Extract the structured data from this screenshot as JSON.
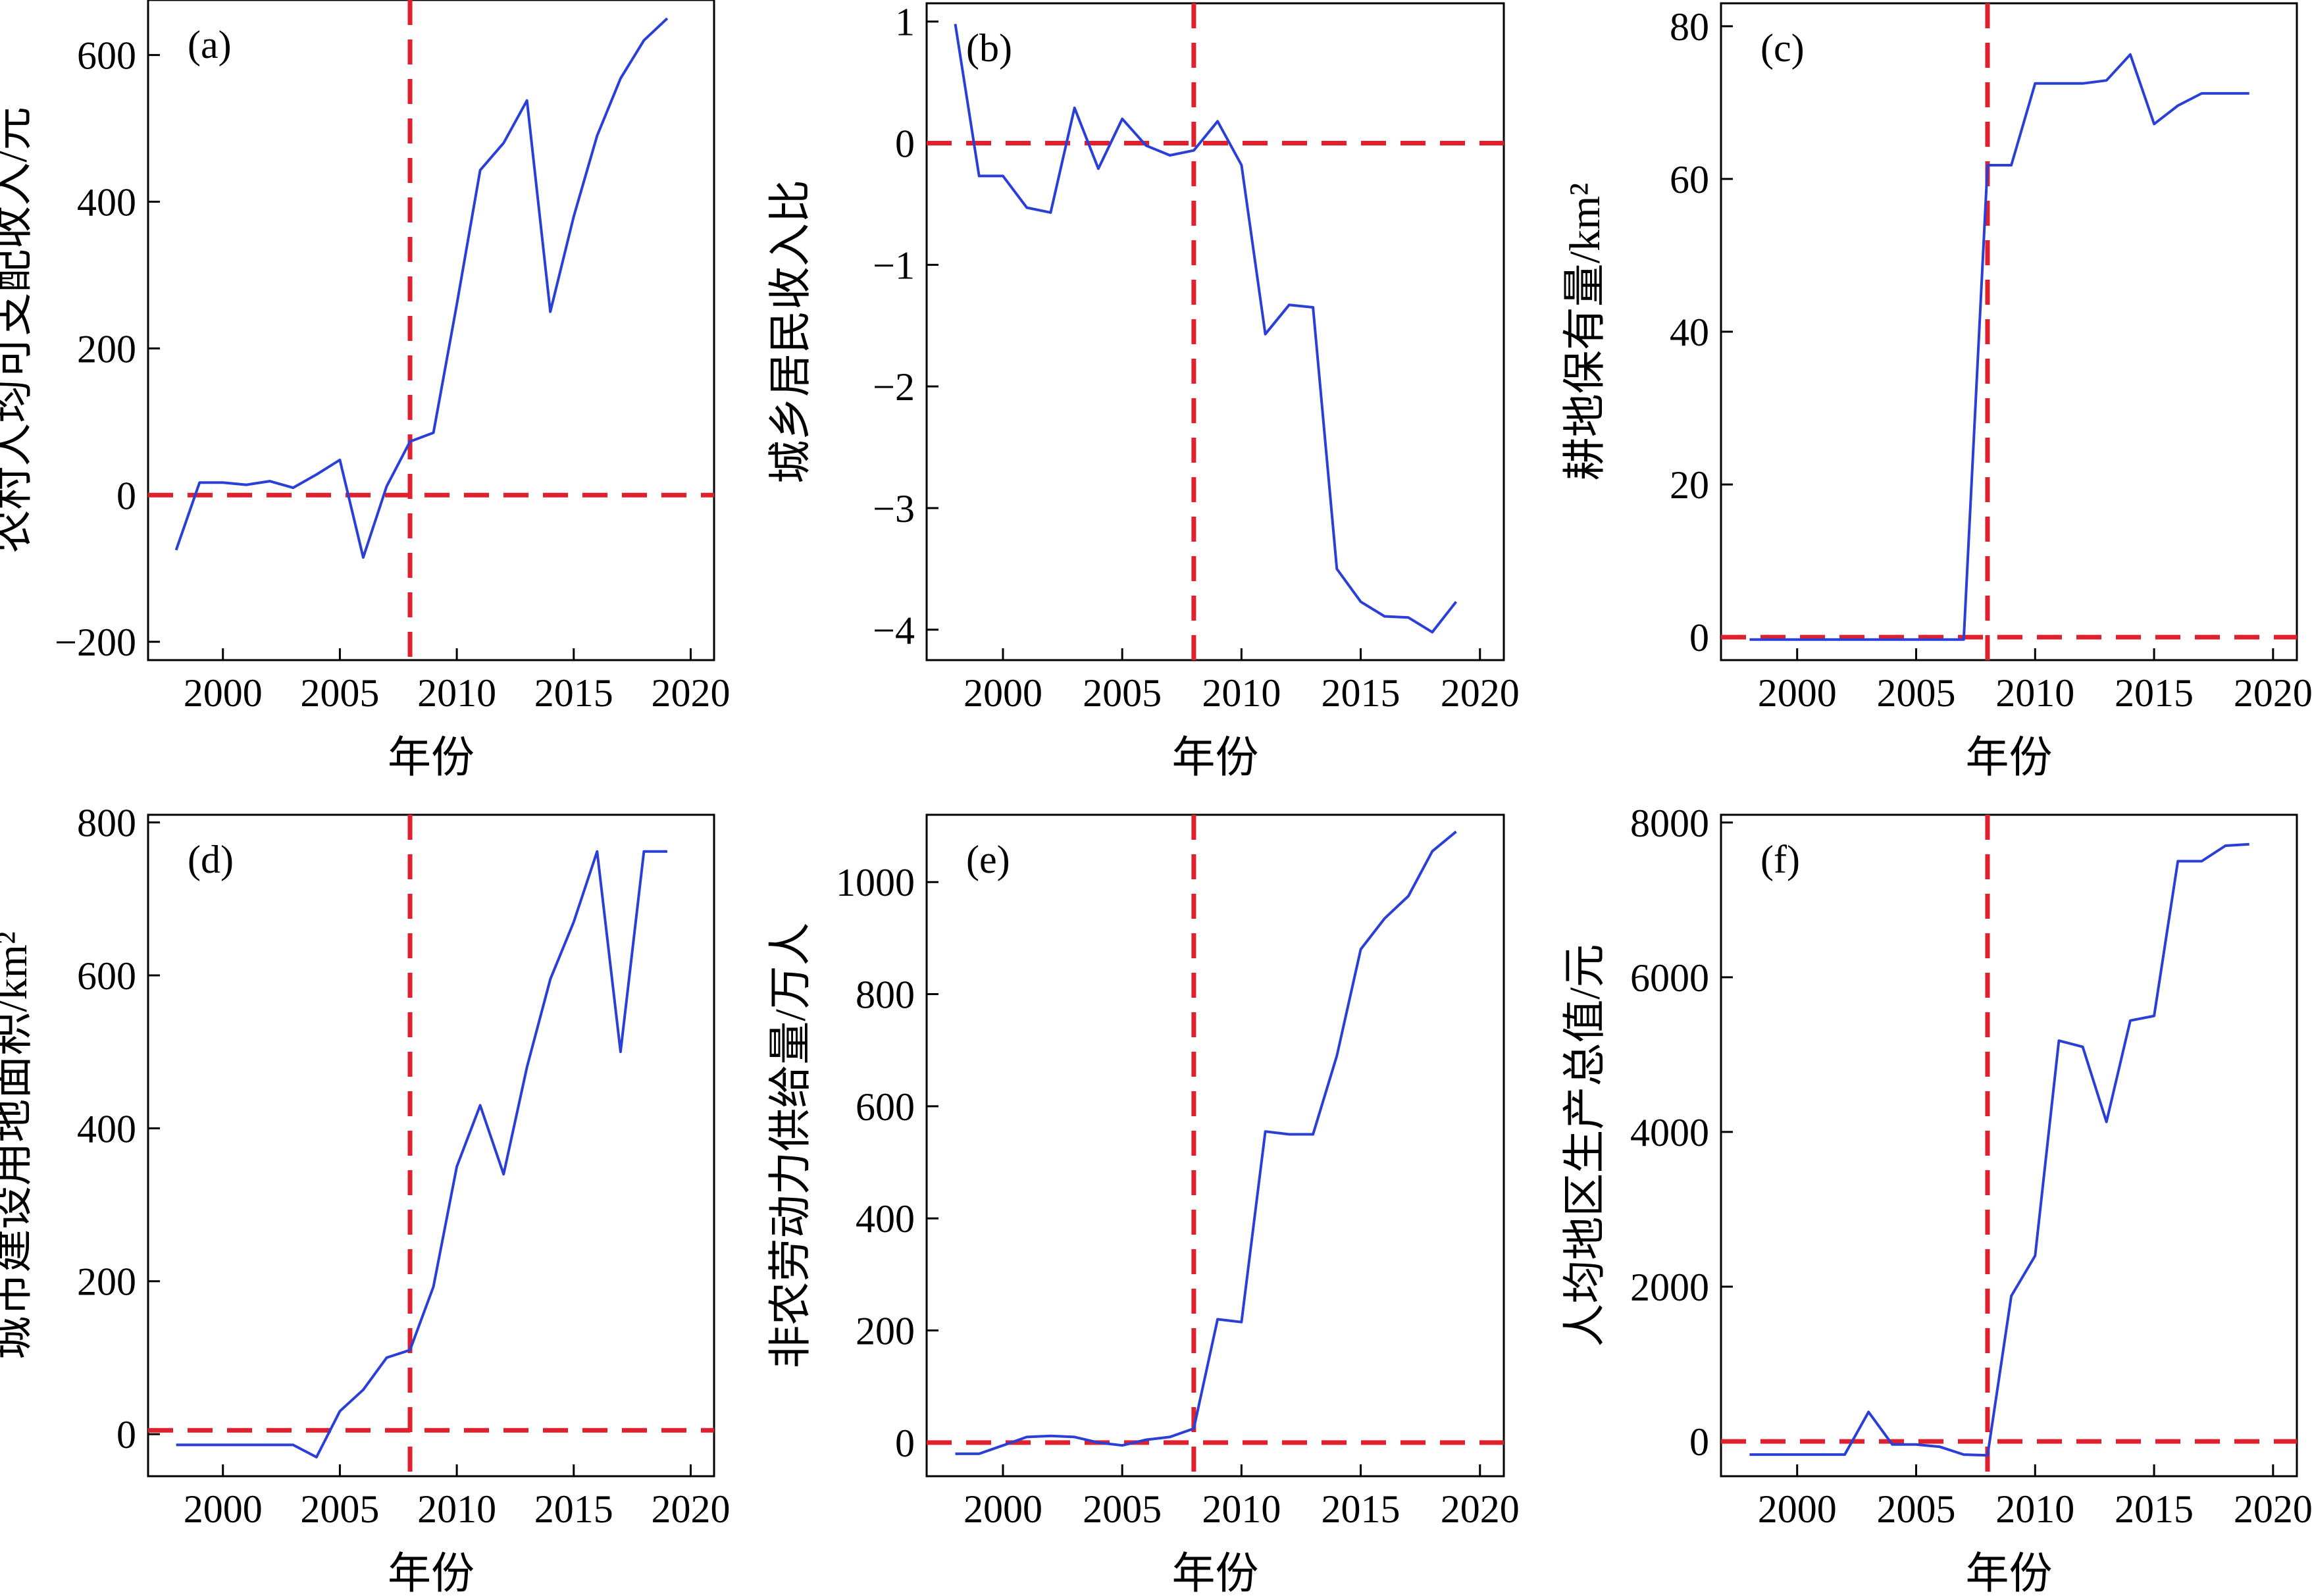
{
  "figure": {
    "colors": {
      "series": "#2a3fd6",
      "reference": "#e0202c",
      "axis": "#000000"
    },
    "line_styles": {
      "reference": "dashed"
    }
  },
  "chart_data": [
    {
      "type": "line",
      "panel_label": "(a)",
      "xlabel": "年份",
      "ylabel": "农村人均可支配收入/元",
      "xlim": [
        1996.8,
        2021
      ],
      "ylim": [
        -225,
        675
      ],
      "xticks": [
        2000,
        2005,
        2010,
        2015,
        2020
      ],
      "yticks": [
        -200,
        0,
        200,
        400,
        600
      ],
      "ytick_labels": [
        "−200",
        "0",
        "200",
        "400",
        "600"
      ],
      "reference_lines": {
        "x": 2008,
        "y": 0
      },
      "series": [
        {
          "x": [
            1998,
            1999,
            2000,
            2001,
            2002,
            2003,
            2004,
            2005,
            2006,
            2007,
            2008,
            2009,
            2010,
            2011,
            2012,
            2013,
            2014,
            2015,
            2016,
            2017,
            2018,
            2019
          ],
          "values": [
            -75,
            17,
            17,
            14,
            19,
            10,
            28,
            48,
            -85,
            12,
            73,
            85,
            260,
            443,
            480,
            538,
            250,
            380,
            490,
            568,
            620,
            650
          ]
        }
      ]
    },
    {
      "type": "line",
      "panel_label": "(b)",
      "xlabel": "年份",
      "ylabel": "城乡居民收入比",
      "xlim": [
        1996.8,
        2021
      ],
      "ylim": [
        -4.25,
        1.15
      ],
      "xticks": [
        2000,
        2005,
        2010,
        2015,
        2020
      ],
      "yticks": [
        -4,
        -3,
        -2,
        -1,
        0,
        1
      ],
      "ytick_labels": [
        "−4",
        "−3",
        "−2",
        "−1",
        "0",
        "1"
      ],
      "reference_lines": {
        "x": 2008,
        "y": 0
      },
      "series": [
        {
          "x": [
            1998,
            1999,
            2000,
            2001,
            2002,
            2003,
            2004,
            2005,
            2006,
            2007,
            2008,
            2009,
            2010,
            2011,
            2012,
            2013,
            2014,
            2015,
            2016,
            2017,
            2018,
            2019
          ],
          "values": [
            0.98,
            -0.27,
            -0.27,
            -0.53,
            -0.57,
            0.29,
            -0.21,
            0.2,
            -0.02,
            -0.1,
            -0.06,
            0.18,
            -0.18,
            -1.57,
            -1.33,
            -1.35,
            -3.5,
            -3.77,
            -3.89,
            -3.9,
            -4.02,
            -3.77
          ]
        }
      ]
    },
    {
      "type": "line",
      "panel_label": "(c)",
      "xlabel": "年份",
      "ylabel": "耕地保有量/km²",
      "xlim": [
        1996.8,
        2021
      ],
      "ylim": [
        -3,
        83
      ],
      "xticks": [
        2000,
        2005,
        2010,
        2015,
        2020
      ],
      "yticks": [
        0,
        20,
        40,
        60,
        80
      ],
      "ytick_labels": [
        "0",
        "20",
        "40",
        "60",
        "80"
      ],
      "reference_lines": {
        "x": 2008,
        "y": 0
      },
      "series": [
        {
          "x": [
            1998,
            1999,
            2000,
            2001,
            2002,
            2003,
            2004,
            2005,
            2006,
            2007,
            2008,
            2009,
            2010,
            2011,
            2012,
            2013,
            2014,
            2015,
            2016,
            2017,
            2018,
            2019
          ],
          "values": [
            -0.3,
            -0.3,
            -0.3,
            -0.3,
            -0.3,
            -0.3,
            -0.3,
            -0.3,
            -0.3,
            -0.3,
            61.8,
            61.8,
            72.5,
            72.5,
            72.5,
            72.9,
            76.3,
            67.2,
            69.6,
            71.2,
            71.2,
            71.2
          ]
        }
      ]
    },
    {
      "type": "line",
      "panel_label": "(d)",
      "xlabel": "年份",
      "ylabel": "城市建设用地面积/km²",
      "xlim": [
        1996.8,
        2021
      ],
      "ylim": [
        -55,
        810
      ],
      "xticks": [
        2000,
        2005,
        2010,
        2015,
        2020
      ],
      "yticks": [
        0,
        200,
        400,
        600,
        800
      ],
      "ytick_labels": [
        "0",
        "200",
        "400",
        "600",
        "800"
      ],
      "reference_lines": {
        "x": 2008,
        "y": 5
      },
      "series": [
        {
          "x": [
            1998,
            1999,
            2000,
            2001,
            2002,
            2003,
            2004,
            2005,
            2006,
            2007,
            2008,
            2009,
            2010,
            2011,
            2012,
            2013,
            2014,
            2015,
            2016,
            2017,
            2018,
            2019
          ],
          "values": [
            -14,
            -14,
            -14,
            -14,
            -14,
            -14,
            -30,
            30,
            58,
            100,
            110,
            193,
            350,
            430,
            340,
            480,
            595,
            670,
            762,
            500,
            762,
            762
          ]
        }
      ]
    },
    {
      "type": "line",
      "panel_label": "(e)",
      "xlabel": "年份",
      "ylabel": "非农劳动力供给量/万人",
      "xlim": [
        1996.8,
        2021
      ],
      "ylim": [
        -60,
        1120
      ],
      "xticks": [
        2000,
        2005,
        2010,
        2015,
        2020
      ],
      "yticks": [
        0,
        200,
        400,
        600,
        800,
        1000
      ],
      "ytick_labels": [
        "0",
        "200",
        "400",
        "600",
        "800",
        "1000"
      ],
      "reference_lines": {
        "x": 2008,
        "y": 0
      },
      "series": [
        {
          "x": [
            1998,
            1999,
            2000,
            2001,
            2002,
            2003,
            2004,
            2005,
            2006,
            2007,
            2008,
            2009,
            2010,
            2011,
            2012,
            2013,
            2014,
            2015,
            2016,
            2017,
            2018,
            2019
          ],
          "values": [
            -20,
            -20,
            -5,
            10,
            12,
            10,
            0,
            -5,
            5,
            10,
            25,
            220,
            215,
            555,
            550,
            550,
            690,
            880,
            935,
            975,
            1055,
            1090
          ]
        }
      ]
    },
    {
      "type": "line",
      "panel_label": "(f)",
      "xlabel": "年份",
      "ylabel": "人均地区生产总值/元",
      "xlim": [
        1996.8,
        2021
      ],
      "ylim": [
        -450,
        8100
      ],
      "xticks": [
        2000,
        2005,
        2010,
        2015,
        2020
      ],
      "yticks": [
        0,
        2000,
        4000,
        6000,
        8000
      ],
      "ytick_labels": [
        "0",
        "2000",
        "4000",
        "6000",
        "8000"
      ],
      "reference_lines": {
        "x": 2008,
        "y": 0
      },
      "series": [
        {
          "x": [
            1998,
            1999,
            2000,
            2001,
            2002,
            2003,
            2004,
            2005,
            2006,
            2007,
            2008,
            2009,
            2010,
            2011,
            2012,
            2013,
            2014,
            2015,
            2016,
            2017,
            2018,
            2019
          ],
          "values": [
            -170,
            -170,
            -170,
            -170,
            -170,
            380,
            -40,
            -40,
            -70,
            -170,
            -180,
            1880,
            2400,
            5180,
            5100,
            4130,
            5440,
            5500,
            7500,
            7500,
            7700,
            7720
          ]
        }
      ]
    }
  ]
}
